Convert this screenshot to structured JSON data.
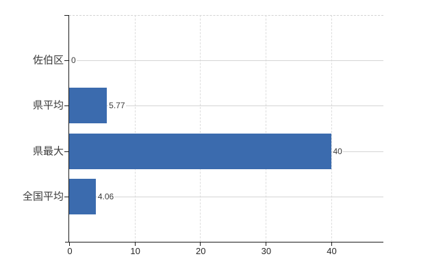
{
  "chart_data": {
    "type": "bar",
    "orientation": "horizontal",
    "title": "",
    "xlabel": "",
    "ylabel": "",
    "categories": [
      "佐伯区",
      "県平均",
      "県最大",
      "全国平均"
    ],
    "values": [
      0,
      5.77,
      40,
      4.06
    ],
    "value_labels": [
      "0",
      "5.77",
      "40",
      "4.06"
    ],
    "x_ticks": [
      0,
      10,
      20,
      30,
      40
    ],
    "x_tick_labels": [
      "0",
      "10",
      "20",
      "30",
      "40"
    ],
    "xlim": [
      0,
      48
    ],
    "grid": "on",
    "legend": "none",
    "bar_color": "#3b6bae",
    "gridline_color": "#d4d4d4",
    "axis_color": "#1a1a1a",
    "background_color": "#ffffff"
  }
}
